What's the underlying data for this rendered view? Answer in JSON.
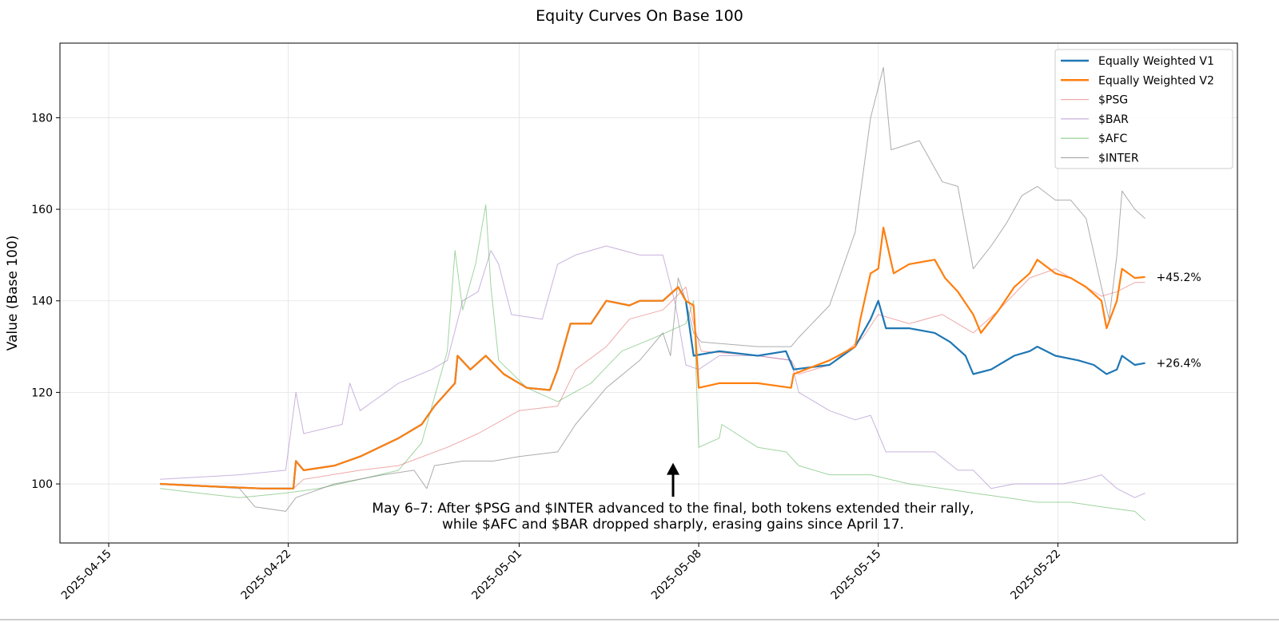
{
  "chart_data": {
    "type": "line",
    "title": "Equity Curves On Base 100",
    "xlabel": "",
    "ylabel": "Value (Base 100)",
    "x_unit": "days since 2025-04-15",
    "xlim": [
      -1.9,
      44.0
    ],
    "ylim": [
      87.1,
      196.3
    ],
    "grid": true,
    "legend_position": "top-right",
    "x_ticks": [
      {
        "value": 0,
        "label": "2025-04-15"
      },
      {
        "value": 7,
        "label": "2025-04-22"
      },
      {
        "value": 16,
        "label": "2025-05-01"
      },
      {
        "value": 23,
        "label": "2025-05-08"
      },
      {
        "value": 30,
        "label": "2025-05-15"
      },
      {
        "value": 37,
        "label": "2025-05-22"
      }
    ],
    "y_ticks": [
      {
        "value": 100,
        "label": "100"
      },
      {
        "value": 120,
        "label": "120"
      },
      {
        "value": 140,
        "label": "140"
      },
      {
        "value": 160,
        "label": "160"
      },
      {
        "value": 180,
        "label": "180"
      }
    ],
    "series": [
      {
        "name": "$PSG",
        "color": "#d62728",
        "opacity": 0.4,
        "width": 1,
        "x": [
          2.0,
          6.0,
          7.2,
          7.6,
          9.8,
          11.3,
          13.2,
          14.4,
          16.0,
          17.5,
          18.2,
          19.4,
          20.3,
          21.6,
          22.5,
          22.8,
          23.1,
          25.3,
          26.6,
          26.9,
          28.1,
          29.4,
          30.0,
          31.2,
          32.5,
          33.7,
          34.7,
          35.9,
          36.9,
          37.8,
          38.7,
          39.3,
          40.0,
          40.4
        ],
        "y": [
          100,
          99,
          99,
          101,
          103,
          104,
          108,
          111,
          116,
          117,
          125,
          130,
          136,
          138,
          143,
          135,
          129,
          128,
          127,
          124,
          126,
          132,
          137,
          135,
          137,
          133,
          138,
          145,
          147,
          144,
          141,
          142,
          144,
          144
        ]
      },
      {
        "name": "$BAR",
        "color": "#9467bd",
        "opacity": 0.5,
        "width": 1,
        "x": [
          2.0,
          5.1,
          6.9,
          7.3,
          7.6,
          9.1,
          9.4,
          9.8,
          11.3,
          12.6,
          13.2,
          13.8,
          14.4,
          14.9,
          15.2,
          15.7,
          16.9,
          17.5,
          18.2,
          19.4,
          20.7,
          21.6,
          22.1,
          22.5,
          23.0,
          23.8,
          25.3,
          26.6,
          26.9,
          28.1,
          29.1,
          29.7,
          30.3,
          31.2,
          32.2,
          33.1,
          33.7,
          34.4,
          35.3,
          36.2,
          37.2,
          38.1,
          38.7,
          39.3,
          40.0,
          40.4
        ],
        "y": [
          101,
          102,
          103,
          120,
          111,
          113,
          122,
          116,
          122,
          125,
          127,
          140,
          142,
          151,
          148,
          137,
          136,
          148,
          150,
          152,
          150,
          150,
          139,
          126,
          125,
          128,
          128,
          127,
          120,
          116,
          114,
          115,
          107,
          107,
          107,
          103,
          103,
          99,
          100,
          100,
          100,
          101,
          102,
          99,
          97,
          98
        ]
      },
      {
        "name": "$AFC",
        "color": "#2ca02c",
        "opacity": 0.45,
        "width": 1,
        "x": [
          2.0,
          3.5,
          5.1,
          6.9,
          8.2,
          9.8,
          11.3,
          12.2,
          13.2,
          13.5,
          13.8,
          14.3,
          14.7,
          14.9,
          15.2,
          16.3,
          17.5,
          18.8,
          20.0,
          21.3,
          22.5,
          22.8,
          23.0,
          23.8,
          23.9,
          25.3,
          26.4,
          26.9,
          28.1,
          29.7,
          31.2,
          32.5,
          33.7,
          35.0,
          36.2,
          37.5,
          38.7,
          40.0,
          40.4
        ],
        "y": [
          99,
          98,
          97,
          98,
          99,
          101,
          103,
          109,
          129,
          151,
          138,
          148,
          161,
          143,
          127,
          121,
          118,
          122,
          129,
          132,
          135,
          140,
          108,
          110,
          113,
          108,
          107,
          104,
          102,
          102,
          100,
          99,
          98,
          97,
          96,
          96,
          95,
          94,
          92
        ]
      },
      {
        "name": "$INTER",
        "color": "#7f7f7f",
        "opacity": 0.65,
        "width": 1,
        "x": [
          2.0,
          5.1,
          5.7,
          6.9,
          7.3,
          8.8,
          10.7,
          11.9,
          12.4,
          12.7,
          13.8,
          15.0,
          16.0,
          17.5,
          18.2,
          19.4,
          20.7,
          21.6,
          21.9,
          22.2,
          22.5,
          22.8,
          23.1,
          25.3,
          26.6,
          26.9,
          28.1,
          29.1,
          29.7,
          30.2,
          30.5,
          31.6,
          32.5,
          33.1,
          33.7,
          34.4,
          35.0,
          35.6,
          36.2,
          36.9,
          37.5,
          38.1,
          38.7,
          39.0,
          39.3,
          39.5,
          40.0,
          40.4
        ],
        "y": [
          100,
          99,
          95,
          94,
          97,
          100,
          102,
          103,
          99,
          104,
          105,
          105,
          106,
          107,
          113,
          121,
          127,
          133,
          128,
          145,
          140,
          133,
          131,
          130,
          130,
          132,
          139,
          155,
          180,
          191,
          173,
          175,
          166,
          165,
          147,
          152,
          157,
          163,
          165,
          162,
          162,
          158,
          143,
          136,
          150,
          164,
          160,
          158
        ]
      },
      {
        "name": "Equally Weighted V1",
        "color": "#1f77b4",
        "opacity": 1,
        "width": 2.2,
        "x": [
          2.0,
          3.8,
          6.0,
          7.2,
          7.3,
          7.6,
          8.8,
          9.8,
          11.3,
          12.2,
          12.7,
          13.5,
          13.6,
          14.1,
          14.7,
          15.4,
          16.3,
          17.2,
          17.5,
          18.0,
          18.8,
          19.4,
          20.3,
          20.7,
          21.6,
          22.2,
          22.5,
          22.8,
          23.8,
          25.3,
          26.4,
          26.7,
          28.1,
          29.1,
          29.7,
          30.0,
          30.3,
          31.2,
          32.2,
          32.8,
          33.4,
          33.7,
          34.4,
          35.3,
          35.9,
          36.2,
          36.9,
          37.8,
          38.4,
          38.9,
          39.3,
          39.5,
          40.0,
          40.4
        ],
        "y": [
          100,
          99.5,
          99,
          99,
          105,
          103,
          104,
          106,
          110,
          113,
          117,
          122,
          128,
          125,
          128,
          124,
          121,
          120.5,
          125,
          135,
          135,
          140,
          139,
          140,
          140,
          143,
          140,
          128,
          129,
          128,
          129,
          125,
          126,
          130,
          136,
          140,
          134,
          134,
          133,
          131,
          128,
          124,
          125,
          128,
          129,
          130,
          128,
          127,
          126,
          124,
          125,
          128,
          126,
          126.4
        ]
      },
      {
        "name": "Equally Weighted V2",
        "color": "#ff7f0e",
        "opacity": 1,
        "width": 2.2,
        "x": [
          2.0,
          3.8,
          6.0,
          7.2,
          7.3,
          7.6,
          8.8,
          9.8,
          11.3,
          12.2,
          12.7,
          13.5,
          13.6,
          14.1,
          14.7,
          15.4,
          16.3,
          17.2,
          17.5,
          18.0,
          18.8,
          19.4,
          20.3,
          20.7,
          21.6,
          22.2,
          22.5,
          22.8,
          23.0,
          23.8,
          25.3,
          26.6,
          26.7,
          28.1,
          29.1,
          29.3,
          29.7,
          30.0,
          30.2,
          30.6,
          31.2,
          32.2,
          32.6,
          33.1,
          33.7,
          34.0,
          34.7,
          35.3,
          35.9,
          36.2,
          36.9,
          37.5,
          38.1,
          38.7,
          38.9,
          39.3,
          39.5,
          40.0,
          40.4
        ],
        "y": [
          100,
          99.5,
          99,
          99,
          105,
          103,
          104,
          106,
          110,
          113,
          117,
          122,
          128,
          125,
          128,
          124,
          121,
          120.5,
          125,
          135,
          135,
          140,
          139,
          140,
          140,
          143,
          140,
          139,
          121,
          122,
          122,
          121,
          124,
          127,
          130,
          136,
          146,
          147,
          156,
          146,
          148,
          149,
          145,
          142,
          137,
          133,
          138,
          143,
          146,
          149,
          146,
          145,
          143,
          140,
          134,
          140,
          147,
          145,
          145.2
        ]
      }
    ],
    "end_labels": [
      {
        "series": "Equally Weighted V2",
        "text": "+45.2%",
        "x": 40.4,
        "y": 145.2
      },
      {
        "series": "Equally Weighted V1",
        "text": "+26.4%",
        "x": 40.4,
        "y": 126.4
      }
    ],
    "annotation": {
      "arrow_from": [
        22.0,
        97.2
      ],
      "arrow_to": [
        22.0,
        104.6
      ],
      "lines": [
        "May 6–7: After $PSG and $INTER advanced to the final, both tokens extended their rally,",
        "while $AFC and $BAR dropped sharply, erasing gains since April 17."
      ]
    },
    "legend_order": [
      "Equally Weighted V1",
      "Equally Weighted V2",
      "$PSG",
      "$BAR",
      "$AFC",
      "$INTER"
    ]
  }
}
